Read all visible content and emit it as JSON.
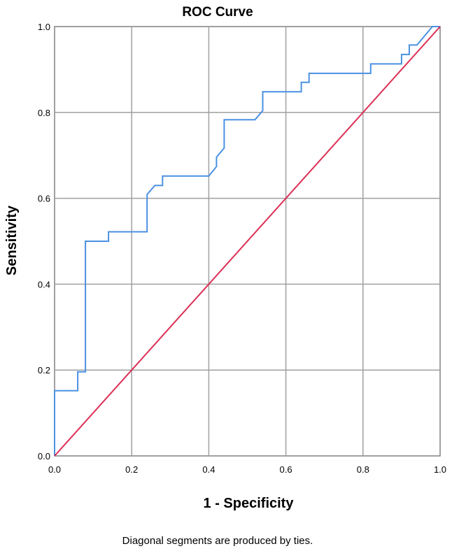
{
  "chart_data": {
    "type": "line",
    "title": "ROC Curve",
    "xlabel": "1 - Specificity",
    "ylabel": "Sensitivity",
    "footnote": "Diagonal segments are produced by ties.",
    "xlim": [
      0.0,
      1.0
    ],
    "ylim": [
      0.0,
      1.0
    ],
    "x_ticks": [
      "0.0",
      "0.2",
      "0.4",
      "0.6",
      "0.8",
      "1.0"
    ],
    "y_ticks": [
      "0.0",
      "0.2",
      "0.4",
      "0.6",
      "0.8",
      "1.0"
    ],
    "grid": true,
    "legend": "none",
    "series": [
      {
        "color": "#4a90e2",
        "points": [
          [
            0.0,
            0.0
          ],
          [
            0.0,
            0.152
          ],
          [
            0.06,
            0.152
          ],
          [
            0.06,
            0.196
          ],
          [
            0.08,
            0.196
          ],
          [
            0.08,
            0.5
          ],
          [
            0.14,
            0.5
          ],
          [
            0.14,
            0.522
          ],
          [
            0.24,
            0.522
          ],
          [
            0.24,
            0.609
          ],
          [
            0.26,
            0.63
          ],
          [
            0.28,
            0.63
          ],
          [
            0.28,
            0.652
          ],
          [
            0.4,
            0.652
          ],
          [
            0.42,
            0.674
          ],
          [
            0.42,
            0.696
          ],
          [
            0.44,
            0.717
          ],
          [
            0.44,
            0.783
          ],
          [
            0.52,
            0.783
          ],
          [
            0.54,
            0.804
          ],
          [
            0.54,
            0.848
          ],
          [
            0.64,
            0.848
          ],
          [
            0.64,
            0.87
          ],
          [
            0.66,
            0.87
          ],
          [
            0.66,
            0.891
          ],
          [
            0.82,
            0.891
          ],
          [
            0.82,
            0.913
          ],
          [
            0.9,
            0.913
          ],
          [
            0.9,
            0.935
          ],
          [
            0.92,
            0.935
          ],
          [
            0.92,
            0.957
          ],
          [
            0.94,
            0.957
          ],
          [
            0.98,
            1.0
          ],
          [
            1.0,
            1.0
          ]
        ]
      },
      {
        "color": "#dc2f55",
        "points": [
          [
            0.0,
            0.0
          ],
          [
            1.0,
            1.0
          ]
        ]
      }
    ]
  }
}
